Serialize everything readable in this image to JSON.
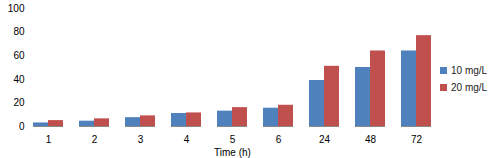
{
  "chart_data": {
    "type": "bar",
    "x_label": "Time (h)",
    "categories": [
      "1",
      "2",
      "3",
      "4",
      "5",
      "6",
      "24",
      "48",
      "72"
    ],
    "series": [
      {
        "name": "10 mg/L",
        "color": "#4f81bd",
        "values": [
          3,
          4.5,
          7.5,
          11,
          13,
          15.5,
          39,
          50,
          64
        ]
      },
      {
        "name": "20 mg/L",
        "color": "#c0504d",
        "values": [
          5,
          6.5,
          9,
          11.5,
          16,
          18,
          51,
          64,
          77
        ]
      }
    ],
    "ylim": [
      0,
      100
    ],
    "yticks": [
      0,
      20,
      40,
      60,
      80,
      100
    ],
    "grid": false,
    "legend": "right"
  }
}
